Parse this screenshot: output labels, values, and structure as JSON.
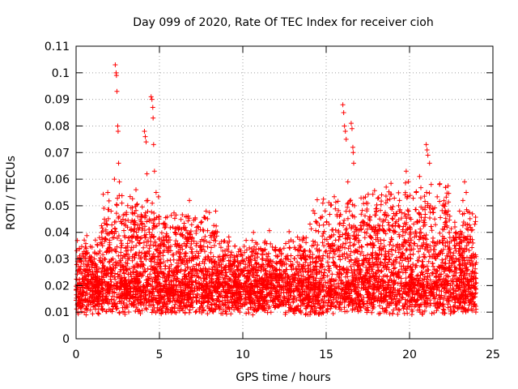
{
  "chart_data": {
    "type": "scatter",
    "title": "Day 099 of 2020, Rate Of TEC Index for receiver cioh",
    "xlabel": "GPS time / hours",
    "ylabel": "ROTI / TECUs",
    "xlim": [
      0,
      25
    ],
    "ylim": [
      0,
      0.11
    ],
    "xticks": [
      0,
      5,
      10,
      15,
      20,
      25
    ],
    "xtick_labels": [
      "0",
      "5",
      "10",
      "15",
      "20",
      "25"
    ],
    "yticks": [
      0,
      0.01,
      0.02,
      0.03,
      0.04,
      0.05,
      0.06,
      0.07,
      0.08,
      0.09,
      0.1,
      0.11
    ],
    "ytick_labels": [
      "0",
      "0.01",
      "0.02",
      "0.03",
      "0.04",
      "0.05",
      "0.06",
      "0.07",
      "0.08",
      "0.09",
      "0.1",
      "0.11"
    ],
    "grid": true,
    "marker": "+",
    "series": [
      {
        "name": "ROTI",
        "color": "#ff0000",
        "points": [
          [
            0.1,
            0.016
          ],
          [
            0.2,
            0.034
          ],
          [
            0.3,
            0.012
          ],
          [
            0.5,
            0.022
          ],
          [
            0.6,
            0.009
          ],
          [
            0.8,
            0.026
          ],
          [
            1.0,
            0.014
          ],
          [
            1.1,
            0.03
          ],
          [
            1.3,
            0.018
          ],
          [
            1.4,
            0.038
          ],
          [
            1.6,
            0.011
          ],
          [
            1.7,
            0.045
          ],
          [
            1.8,
            0.024
          ],
          [
            1.9,
            0.055
          ],
          [
            2.0,
            0.02
          ],
          [
            2.1,
            0.048
          ],
          [
            2.2,
            0.016
          ],
          [
            2.3,
            0.06
          ],
          [
            2.35,
            0.103
          ],
          [
            2.4,
            0.1
          ],
          [
            2.42,
            0.099
          ],
          [
            2.45,
            0.093
          ],
          [
            2.5,
            0.08
          ],
          [
            2.52,
            0.078
          ],
          [
            2.55,
            0.066
          ],
          [
            2.6,
            0.059
          ],
          [
            2.7,
            0.044
          ],
          [
            2.8,
            0.027
          ],
          [
            2.9,
            0.015
          ],
          [
            3.0,
            0.033
          ],
          [
            3.2,
            0.021
          ],
          [
            3.3,
            0.041
          ],
          [
            3.5,
            0.013
          ],
          [
            3.6,
            0.035
          ],
          [
            3.7,
            0.046
          ],
          [
            3.8,
            0.019
          ],
          [
            3.9,
            0.044
          ],
          [
            4.0,
            0.028
          ],
          [
            4.1,
            0.078
          ],
          [
            4.15,
            0.076
          ],
          [
            4.2,
            0.074
          ],
          [
            4.25,
            0.062
          ],
          [
            4.3,
            0.052
          ],
          [
            4.4,
            0.045
          ],
          [
            4.5,
            0.091
          ],
          [
            4.55,
            0.09
          ],
          [
            4.6,
            0.087
          ],
          [
            4.62,
            0.083
          ],
          [
            4.65,
            0.073
          ],
          [
            4.7,
            0.063
          ],
          [
            4.8,
            0.055
          ],
          [
            4.9,
            0.031
          ],
          [
            5.0,
            0.018
          ],
          [
            5.2,
            0.036
          ],
          [
            5.4,
            0.012
          ],
          [
            5.6,
            0.027
          ],
          [
            5.8,
            0.042
          ],
          [
            6.0,
            0.02
          ],
          [
            6.2,
            0.031
          ],
          [
            6.4,
            0.015
          ],
          [
            6.6,
            0.046
          ],
          [
            6.8,
            0.052
          ],
          [
            7.0,
            0.024
          ],
          [
            7.2,
            0.035
          ],
          [
            7.4,
            0.011
          ],
          [
            7.6,
            0.029
          ],
          [
            7.8,
            0.048
          ],
          [
            8.0,
            0.018
          ],
          [
            8.2,
            0.04
          ],
          [
            8.4,
            0.026
          ],
          [
            8.6,
            0.014
          ],
          [
            8.8,
            0.033
          ],
          [
            9.0,
            0.021
          ],
          [
            9.2,
            0.011
          ],
          [
            9.4,
            0.028
          ],
          [
            9.6,
            0.017
          ],
          [
            9.8,
            0.024
          ],
          [
            10.0,
            0.013
          ],
          [
            10.2,
            0.037
          ],
          [
            10.4,
            0.019
          ],
          [
            10.6,
            0.009
          ],
          [
            10.8,
            0.027
          ],
          [
            11.0,
            0.015
          ],
          [
            11.2,
            0.033
          ],
          [
            11.4,
            0.022
          ],
          [
            11.6,
            0.012
          ],
          [
            11.8,
            0.029
          ],
          [
            12.0,
            0.017
          ],
          [
            12.2,
            0.026
          ],
          [
            12.4,
            0.013
          ],
          [
            12.6,
            0.031
          ],
          [
            12.8,
            0.019
          ],
          [
            13.0,
            0.024
          ],
          [
            13.2,
            0.011
          ],
          [
            13.4,
            0.035
          ],
          [
            13.6,
            0.021
          ],
          [
            13.8,
            0.038
          ],
          [
            14.0,
            0.016
          ],
          [
            14.2,
            0.029
          ],
          [
            14.4,
            0.044
          ],
          [
            14.6,
            0.025
          ],
          [
            14.8,
            0.051
          ],
          [
            15.0,
            0.033
          ],
          [
            15.2,
            0.018
          ],
          [
            15.4,
            0.041
          ],
          [
            15.6,
            0.027
          ],
          [
            15.8,
            0.046
          ],
          [
            16.0,
            0.088
          ],
          [
            16.05,
            0.085
          ],
          [
            16.1,
            0.08
          ],
          [
            16.15,
            0.078
          ],
          [
            16.2,
            0.075
          ],
          [
            16.3,
            0.059
          ],
          [
            16.4,
            0.048
          ],
          [
            16.5,
            0.081
          ],
          [
            16.55,
            0.079
          ],
          [
            16.6,
            0.072
          ],
          [
            16.62,
            0.07
          ],
          [
            16.65,
            0.066
          ],
          [
            16.7,
            0.05
          ],
          [
            16.8,
            0.038
          ],
          [
            17.0,
            0.026
          ],
          [
            17.2,
            0.044
          ],
          [
            17.4,
            0.051
          ],
          [
            17.6,
            0.022
          ],
          [
            17.8,
            0.036
          ],
          [
            18.0,
            0.048
          ],
          [
            18.2,
            0.019
          ],
          [
            18.4,
            0.041
          ],
          [
            18.6,
            0.057
          ],
          [
            18.8,
            0.03
          ],
          [
            19.0,
            0.045
          ],
          [
            19.2,
            0.024
          ],
          [
            19.4,
            0.052
          ],
          [
            19.6,
            0.035
          ],
          [
            19.8,
            0.063
          ],
          [
            20.0,
            0.042
          ],
          [
            20.2,
            0.028
          ],
          [
            20.4,
            0.055
          ],
          [
            20.6,
            0.061
          ],
          [
            20.8,
            0.038
          ],
          [
            21.0,
            0.073
          ],
          [
            21.05,
            0.071
          ],
          [
            21.1,
            0.069
          ],
          [
            21.2,
            0.066
          ],
          [
            21.3,
            0.058
          ],
          [
            21.4,
            0.049
          ],
          [
            21.6,
            0.031
          ],
          [
            21.8,
            0.058
          ],
          [
            22.0,
            0.027
          ],
          [
            22.2,
            0.044
          ],
          [
            22.4,
            0.036
          ],
          [
            22.6,
            0.019
          ],
          [
            22.8,
            0.033
          ],
          [
            23.0,
            0.048
          ],
          [
            23.2,
            0.052
          ],
          [
            23.3,
            0.059
          ],
          [
            23.4,
            0.055
          ],
          [
            23.5,
            0.041
          ],
          [
            23.6,
            0.024
          ],
          [
            23.8,
            0.036
          ],
          [
            23.9,
            0.013
          ],
          [
            24.0,
            0.021
          ]
        ]
      }
    ]
  }
}
